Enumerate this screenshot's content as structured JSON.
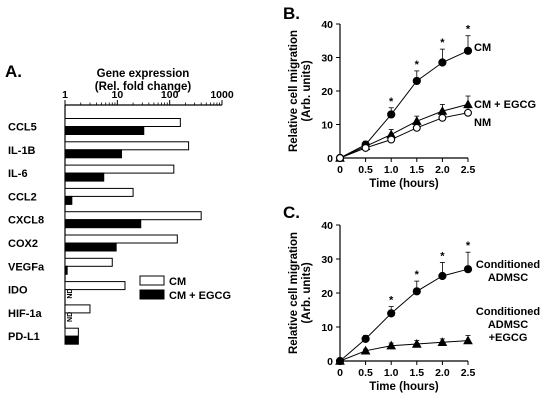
{
  "chart_data": [
    {
      "panel": "A.",
      "type": "bar",
      "orientation": "horizontal",
      "xscale": "log",
      "xlim": [
        1,
        1000
      ],
      "xticks": [
        "1",
        "10",
        "100",
        "1000"
      ],
      "xlabel_line1": "Gene expression",
      "xlabel_line2": "(Rel. fold change)",
      "categories": [
        "CCL5",
        "IL-1B",
        "IL-6",
        "CCL2",
        "CXCL8",
        "COX2",
        "VEGFa",
        "IDO",
        "HIF-1a",
        "PD-L1"
      ],
      "series": [
        {
          "name": "CM",
          "color": "#ffffff",
          "values": [
            160,
            230,
            120,
            20,
            400,
            140,
            8,
            14,
            3,
            1.8
          ]
        },
        {
          "name": "CM + EGCG",
          "color": "#000000",
          "values": [
            32,
            12,
            5.5,
            1.35,
            28,
            9.5,
            1.1,
            null,
            null,
            1.8
          ]
        }
      ],
      "not_detected": [
        "ND",
        "ND"
      ],
      "not_detected_categories": [
        "IDO",
        "HIF-1a"
      ],
      "legend_position": "bottom-right"
    },
    {
      "panel": "B.",
      "type": "line",
      "x": [
        0,
        0.5,
        1.0,
        1.5,
        2.0,
        2.5
      ],
      "xticks": [
        "0",
        "0.5",
        "1.0",
        "1.5",
        "2.0",
        "2.5"
      ],
      "xlim": [
        0,
        2.5
      ],
      "xlabel": "Time (hours)",
      "ylabel_line1": "Relative cell migration",
      "ylabel_line2": "(Arb. units)",
      "ylim": [
        0,
        40
      ],
      "yticks": [
        "0",
        "10",
        "20",
        "30",
        "40"
      ],
      "series": [
        {
          "name": "CM",
          "marker": "filled-circle",
          "values": [
            0,
            4,
            13,
            23,
            28.5,
            32
          ],
          "errors": [
            0,
            1,
            2,
            3,
            4,
            4.5
          ]
        },
        {
          "name": "CM + EGCG",
          "marker": "filled-triangle",
          "values": [
            0,
            3.5,
            7,
            11,
            14,
            16
          ],
          "errors": [
            0,
            1,
            1.5,
            1.5,
            2,
            2.5
          ]
        },
        {
          "name": "NM",
          "marker": "open-circle",
          "values": [
            0,
            3,
            5.5,
            9,
            12,
            13.5
          ],
          "errors": [
            0,
            0.5,
            1,
            1,
            1.5,
            1.5
          ]
        }
      ],
      "significance_marks": [
        "",
        "",
        "*",
        "*",
        "*",
        "*"
      ]
    },
    {
      "panel": "C.",
      "type": "line",
      "x": [
        0,
        0.5,
        1.0,
        1.5,
        2.0,
        2.5
      ],
      "xticks": [
        "0",
        "0.5",
        "1.0",
        "1.5",
        "2.0",
        "2.5"
      ],
      "xlim": [
        0,
        2.5
      ],
      "xlabel": "Time (hours)",
      "ylabel_line1": "Relative cell migration",
      "ylabel_line2": "(Arb. units)",
      "ylim": [
        0,
        40
      ],
      "yticks": [
        "0",
        "10",
        "20",
        "30",
        "40"
      ],
      "series": [
        {
          "name_lines": [
            "Conditioned",
            "ADMSC"
          ],
          "marker": "filled-circle",
          "values": [
            0,
            6.5,
            14,
            20.5,
            25,
            27
          ],
          "errors": [
            0,
            1,
            2,
            3,
            4,
            5
          ]
        },
        {
          "name_lines": [
            "Conditioned",
            "ADMSC",
            "+EGCG"
          ],
          "marker": "filled-triangle",
          "values": [
            0,
            3,
            4.5,
            5,
            5.5,
            6
          ],
          "errors": [
            0,
            0.5,
            0.8,
            1,
            1,
            1.5
          ]
        }
      ],
      "significance_marks": [
        "",
        "",
        "*",
        "*",
        "*",
        "*"
      ]
    }
  ]
}
